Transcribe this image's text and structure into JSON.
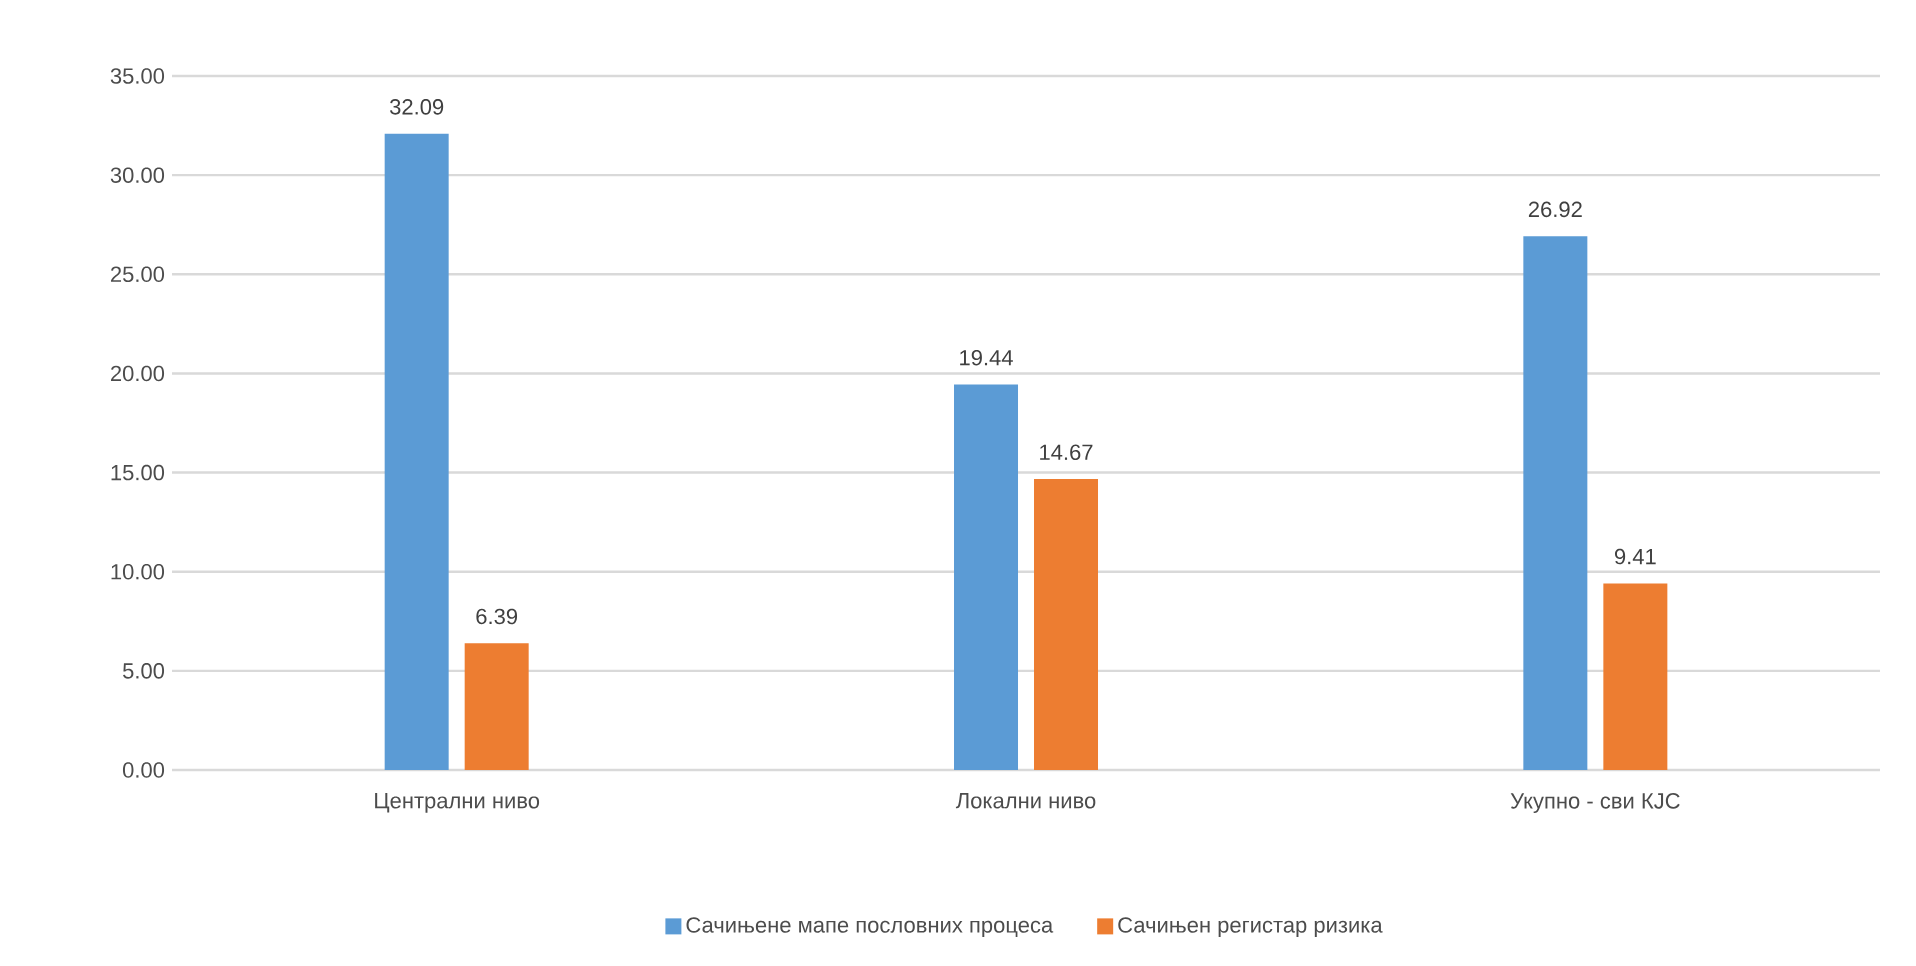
{
  "chart_data": {
    "type": "bar",
    "categories": [
      "Централни ниво",
      "Локални ниво",
      "Укупно - сви КЈС"
    ],
    "series": [
      {
        "name": "Сачињене мапе пословних процеса",
        "color": "#5b9bd5",
        "values": [
          32.09,
          19.44,
          26.92
        ]
      },
      {
        "name": "Сачињен регистар ризика",
        "color": "#ed7d31",
        "values": [
          6.39,
          14.67,
          9.41
        ]
      }
    ],
    "ylim": [
      0,
      35
    ],
    "yticks": [
      {
        "value": 0,
        "label": "0.00"
      },
      {
        "value": 5,
        "label": "5.00"
      },
      {
        "value": 10,
        "label": "10.00"
      },
      {
        "value": 15,
        "label": "15.00"
      },
      {
        "value": 20,
        "label": "20.00"
      },
      {
        "value": 25,
        "label": "25.00"
      },
      {
        "value": 30,
        "label": "30.00"
      },
      {
        "value": 35,
        "label": "35.00"
      }
    ],
    "grid": "y",
    "legend": "bottom",
    "data_labels": true
  }
}
